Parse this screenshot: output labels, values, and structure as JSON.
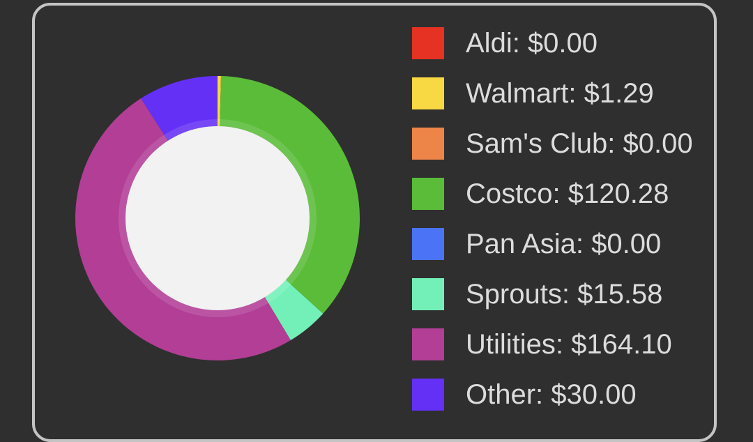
{
  "chart_data": {
    "type": "pie",
    "donut": true,
    "categories": [
      "Aldi",
      "Walmart",
      "Sam's Club",
      "Costco",
      "Pan Asia",
      "Sprouts",
      "Utilities",
      "Other"
    ],
    "values": [
      0.0,
      1.29,
      0.0,
      120.28,
      0.0,
      15.58,
      164.1,
      30.0
    ],
    "colors": [
      "#e53222",
      "#f8d843",
      "#ee8548",
      "#5abc38",
      "#4b73f5",
      "#72f0b8",
      "#b23e96",
      "#6430f5"
    ],
    "labels": [
      "Aldi: $0.00",
      "Walmart: $1.29",
      "Sam's Club: $0.00",
      "Costco: $120.28",
      "Pan Asia: $0.00",
      "Sprouts: $15.58",
      "Utilities: $164.10",
      "Other: $30.00"
    ],
    "legend_position": "right",
    "center_color": "#f2f2f2"
  }
}
